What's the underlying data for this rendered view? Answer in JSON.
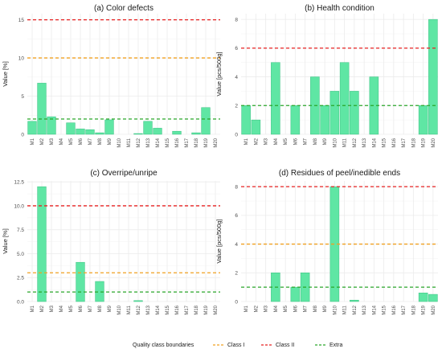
{
  "legend": {
    "title": "Quality class boundaries",
    "entries": [
      {
        "label": "Class I",
        "color": "#f0a020"
      },
      {
        "label": "Class II",
        "color": "#e62020"
      },
      {
        "label": "Extra",
        "color": "#2aa62a"
      }
    ]
  },
  "colors": {
    "bar_fill": "#5fe6a4",
    "bar_stroke": "#39c080",
    "grid": "#ebebeb"
  },
  "chart_data": [
    {
      "type": "bar",
      "title": "(a) Color defects",
      "xlabel": "",
      "ylabel": "Value [%]",
      "categories": [
        "M1",
        "M2",
        "M3",
        "M4",
        "M5",
        "M6",
        "M7",
        "M8",
        "M9",
        "M10",
        "M11",
        "M12",
        "M13",
        "M14",
        "M15",
        "M16",
        "M17",
        "M18",
        "M19",
        "M20"
      ],
      "values": [
        1.7,
        6.7,
        2.3,
        0,
        1.5,
        0.7,
        0.6,
        0.2,
        1.9,
        0,
        0,
        0.1,
        1.7,
        0.8,
        0,
        0.4,
        0,
        0.2,
        3.5,
        0
      ],
      "ylim": [
        0,
        15.8
      ],
      "yticks": [
        0,
        5,
        10,
        15
      ],
      "ytick_labels": [
        "0",
        "5",
        "10",
        "15"
      ],
      "boundaries": {
        "Class I": 10,
        "Class II": 15,
        "Extra": 2
      },
      "grid": true
    },
    {
      "type": "bar",
      "title": "(b) Health condition",
      "xlabel": "",
      "ylabel": "Value [pcs/500g]",
      "categories": [
        "M1",
        "M2",
        "M3",
        "M4",
        "M5",
        "M6",
        "M7",
        "M8",
        "M9",
        "M10",
        "M11",
        "M12",
        "M13",
        "M14",
        "M15",
        "M16",
        "M17",
        "M18",
        "M19",
        "M20"
      ],
      "values": [
        2,
        1,
        0,
        5,
        0,
        2,
        0,
        4,
        2,
        3,
        5,
        3,
        0,
        4,
        0,
        0,
        0,
        0,
        2,
        8
      ],
      "ylim": [
        0,
        8.4
      ],
      "yticks": [
        0,
        2,
        4,
        6,
        8
      ],
      "ytick_labels": [
        "0",
        "2",
        "4",
        "6",
        "8"
      ],
      "boundaries": {
        "Class II": 6,
        "Extra": 2
      },
      "grid": true
    },
    {
      "type": "bar",
      "title": "(c) Overripe/unripe",
      "xlabel": "",
      "ylabel": "Value [%]",
      "categories": [
        "M1",
        "M2",
        "M3",
        "M4",
        "M5",
        "M6",
        "M7",
        "M8",
        "M9",
        "M10",
        "M11",
        "M12",
        "M13",
        "M14",
        "M15",
        "M16",
        "M17",
        "M18",
        "M19",
        "M20"
      ],
      "values": [
        0,
        12,
        0,
        0,
        0,
        4.1,
        0,
        2.1,
        0,
        0,
        0,
        0.1,
        0,
        0,
        0,
        0,
        0,
        0,
        0,
        0
      ],
      "ylim": [
        0,
        12.6
      ],
      "yticks": [
        0,
        2.5,
        5,
        7.5,
        10,
        12.5
      ],
      "ytick_labels": [
        "0.0",
        "2.5",
        "5.0",
        "7.5",
        "10.0",
        "12.5"
      ],
      "boundaries": {
        "Class I": 3,
        "Class II": 10,
        "Extra": 1
      },
      "grid": true
    },
    {
      "type": "bar",
      "title": "(d) Residues of peel/inedible ends",
      "xlabel": "",
      "ylabel": "Value [pcs/500g]",
      "categories": [
        "M1",
        "M2",
        "M3",
        "M4",
        "M5",
        "M6",
        "M7",
        "M8",
        "M9",
        "M10",
        "M11",
        "M12",
        "M13",
        "M14",
        "M15",
        "M16",
        "M17",
        "M18",
        "M19",
        "M20"
      ],
      "values": [
        0,
        0,
        0,
        2,
        0,
        1,
        2,
        0,
        0,
        8,
        0,
        0.1,
        0,
        0,
        0,
        0,
        0,
        0,
        0.6,
        0.5
      ],
      "ylim": [
        0,
        8.4
      ],
      "yticks": [
        0,
        2,
        4,
        6,
        8
      ],
      "ytick_labels": [
        "0",
        "2",
        "4",
        "6",
        "8"
      ],
      "boundaries": {
        "Class I": 4,
        "Class II": 8,
        "Extra": 1
      },
      "grid": true
    }
  ]
}
